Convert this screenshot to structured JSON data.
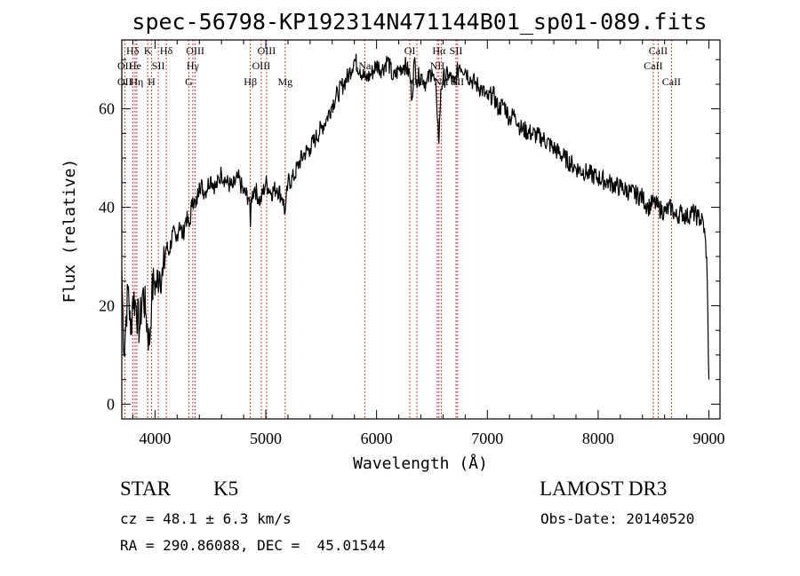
{
  "info": {
    "object_class": "STAR",
    "subclass": "K5",
    "survey": "LAMOST DR3",
    "cz_line": "cz = 48.1 ± 6.3 km/s",
    "obs_date_line": "Obs-Date: 20140520",
    "coords_line": "RA = 290.86088, DEC =  45.01544"
  },
  "colors": {
    "spectrum": "#000000",
    "line_marker": "#cc0000",
    "axes": "#000000",
    "background": "#ffffff"
  },
  "chart_data": {
    "type": "line",
    "title": "spec-56798-KP192314N471144B01_sp01-089.fits",
    "xlabel": "Wavelength (Å)",
    "ylabel": "Flux (relative)",
    "xlim": [
      3700,
      9100
    ],
    "ylim": [
      -3,
      74
    ],
    "x_ticks": [
      4000,
      5000,
      6000,
      7000,
      8000,
      9000
    ],
    "y_ticks": [
      0,
      20,
      40,
      60
    ],
    "grid": false,
    "series": [
      {
        "x": [
          3700,
          3720,
          3740,
          3760,
          3780,
          3800,
          3830,
          3860,
          3890,
          3920,
          3950,
          3970,
          3990,
          4010,
          4040,
          4070,
          4100,
          4130,
          4160,
          4190,
          4220,
          4250,
          4280,
          4310,
          4340,
          4370,
          4400,
          4450,
          4500,
          4550,
          4600,
          4650,
          4700,
          4750,
          4800,
          4850,
          4861,
          4870,
          4900,
          4950,
          5000,
          5050,
          5100,
          5150,
          5175,
          5200,
          5250,
          5300,
          5350,
          5400,
          5450,
          5500,
          5550,
          5600,
          5650,
          5700,
          5750,
          5800,
          5850,
          5900,
          5950,
          6000,
          6050,
          6100,
          6150,
          6200,
          6250,
          6300,
          6320,
          6340,
          6360,
          6400,
          6450,
          6500,
          6540,
          6563,
          6580,
          6600,
          6650,
          6700,
          6750,
          6800,
          6850,
          6900,
          6950,
          7000,
          7050,
          7100,
          7150,
          7200,
          7250,
          7300,
          7400,
          7500,
          7600,
          7700,
          7800,
          7900,
          8000,
          8100,
          8200,
          8300,
          8400,
          8450,
          8500,
          8542,
          8600,
          8662,
          8700,
          8750,
          8800,
          8850,
          8900,
          8950,
          8980,
          9000
        ],
        "y": [
          27,
          10,
          18,
          24,
          14,
          22,
          20,
          15,
          23,
          18,
          12,
          22,
          25,
          24,
          27,
          26,
          32,
          31,
          35,
          33,
          37,
          34,
          38,
          36,
          42,
          40,
          45,
          43,
          46,
          44,
          47,
          45,
          44,
          46,
          43,
          42,
          36,
          42,
          44,
          41,
          45,
          43,
          44,
          42,
          39,
          45,
          46,
          49,
          51,
          52,
          54,
          56,
          58,
          61,
          63,
          65,
          67,
          70,
          68,
          66,
          67,
          69,
          68,
          70,
          66,
          68,
          69,
          67,
          62,
          70,
          66,
          67,
          65,
          68,
          63,
          53,
          64,
          66,
          67,
          65,
          69,
          68,
          66,
          65,
          64,
          62,
          63,
          60,
          61,
          58,
          59,
          56,
          55,
          54,
          52,
          50,
          48,
          47,
          46,
          45,
          44,
          43,
          42,
          40,
          41,
          40,
          39,
          40,
          38,
          39,
          38,
          39,
          38,
          37,
          30,
          5
        ]
      }
    ],
    "line_markers": [
      {
        "label": "Hδ",
        "x": 3798,
        "row": 0
      },
      {
        "label": "OII",
        "x": 3727,
        "row": 1
      },
      {
        "label": "OII",
        "x": 3727,
        "row": 2
      },
      {
        "label": "He",
        "x": 3820,
        "row": 1
      },
      {
        "label": "Hη",
        "x": 3835,
        "row": 2
      },
      {
        "label": "K",
        "x": 3934,
        "row": 0
      },
      {
        "label": "SII",
        "x": 4030,
        "row": 1
      },
      {
        "label": "H",
        "x": 3968,
        "row": 2
      },
      {
        "label": "Hδ",
        "x": 4102,
        "row": 0
      },
      {
        "label": "OIII",
        "x": 4363,
        "row": 0
      },
      {
        "label": "Hγ",
        "x": 4341,
        "row": 1
      },
      {
        "label": "G",
        "x": 4305,
        "row": 2
      },
      {
        "label": "Hβ",
        "x": 4861,
        "row": 2
      },
      {
        "label": "OIII",
        "x": 4959,
        "row": 1
      },
      {
        "label": "OIII",
        "x": 5007,
        "row": 0
      },
      {
        "label": "Mg",
        "x": 5175,
        "row": 2
      },
      {
        "label": "Na",
        "x": 5893,
        "row": 1
      },
      {
        "label": "OI",
        "x": 6300,
        "row": 0
      },
      {
        "label": "OI",
        "x": 6364,
        "row": 2
      },
      {
        "label": "Hα",
        "x": 6563,
        "row": 0
      },
      {
        "label": "NII",
        "x": 6548,
        "row": 1
      },
      {
        "label": "NII",
        "x": 6584,
        "row": 2
      },
      {
        "label": "SII",
        "x": 6717,
        "row": 0
      },
      {
        "label": "SII",
        "x": 6731,
        "row": 2
      },
      {
        "label": "CaII",
        "x": 8498,
        "row": 1
      },
      {
        "label": "CaII",
        "x": 8542,
        "row": 0
      },
      {
        "label": "CaII",
        "x": 8662,
        "row": 2
      }
    ]
  }
}
